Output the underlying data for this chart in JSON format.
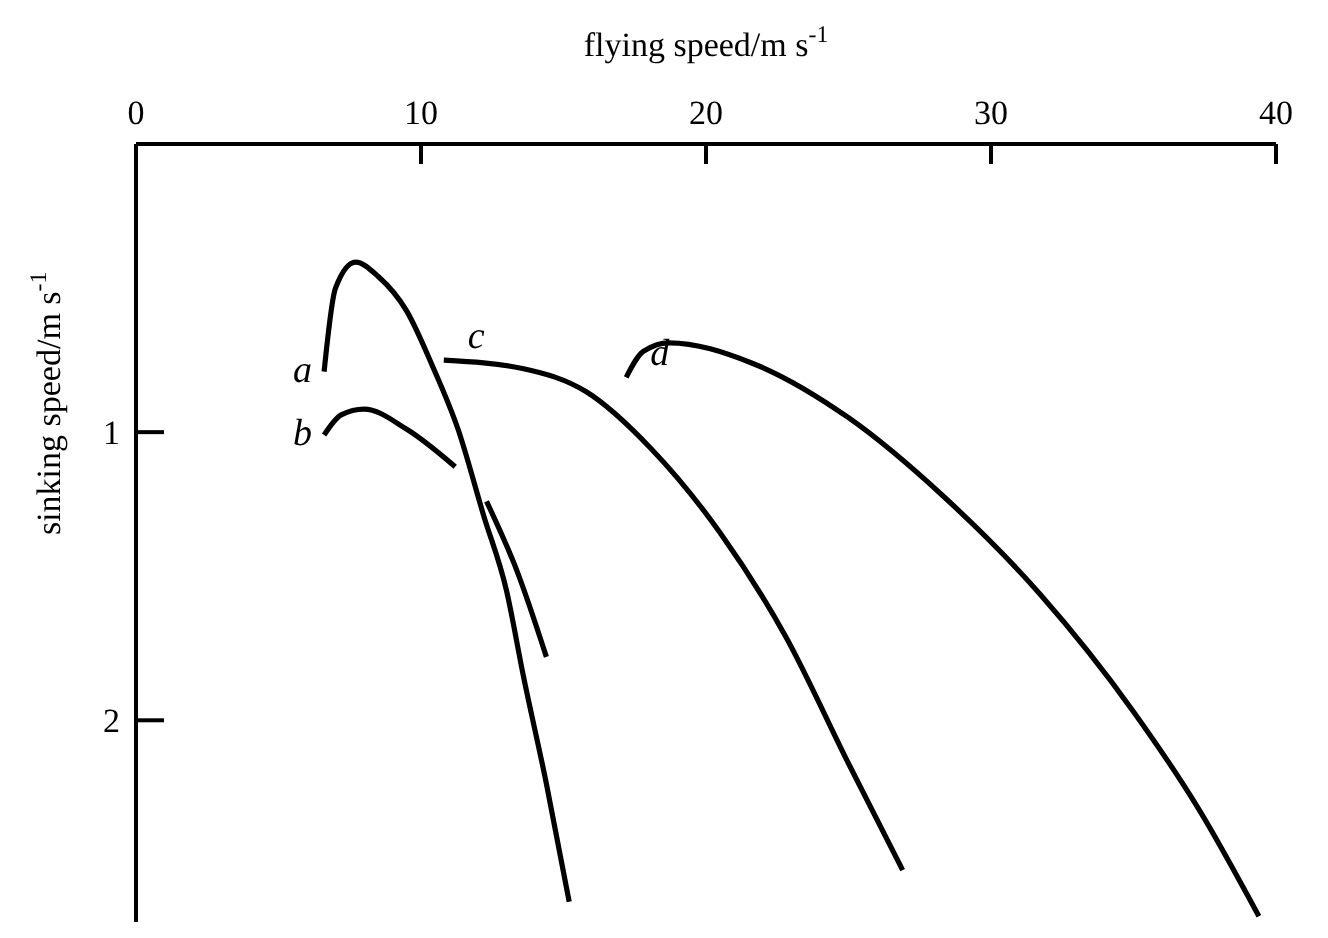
{
  "chart_data": {
    "type": "line",
    "xlabel": "flying speed/m s$^{-1}$",
    "ylabel": "sinking speed/m s$^{-1}$",
    "xlim": [
      0,
      40
    ],
    "xticks": [
      0,
      10,
      20,
      30,
      40
    ],
    "ylim": [
      2.7,
      0
    ],
    "yticks": [
      1,
      2
    ],
    "grid": false,
    "legend": false,
    "marker": "none",
    "line_style": "solid",
    "series": [
      {
        "name": "a",
        "color": "#000000",
        "x": [
          6.6,
          7.0,
          7.7,
          8.5,
          9.5,
          10.4,
          11.3,
          12.2,
          13.0,
          13.6,
          14.4,
          15.2
        ],
        "values": [
          0.79,
          0.5,
          0.41,
          0.46,
          0.58,
          0.77,
          0.99,
          1.29,
          1.55,
          1.85,
          2.22,
          2.63
        ]
      },
      {
        "name": "b",
        "color": "#000000",
        "x": [
          6.6,
          7.2,
          8.0,
          9.5,
          11.2,
          11.8,
          12.3,
          13.4,
          14.4
        ],
        "values": [
          1.01,
          0.94,
          0.92,
          0.99,
          1.12,
          null,
          1.24,
          1.49,
          1.78
        ]
      },
      {
        "name": "c",
        "color": "#000000",
        "x": [
          10.8,
          13.6,
          15.8,
          18.1,
          20.5,
          22.8,
          25.0,
          26.9
        ],
        "values": [
          0.75,
          0.78,
          0.86,
          1.06,
          1.35,
          1.71,
          2.15,
          2.52
        ]
      },
      {
        "name": "d",
        "color": "#000000",
        "x": [
          17.2,
          17.8,
          18.7,
          21.6,
          25.0,
          28.3,
          31.7,
          35.0,
          37.3,
          39.4
        ],
        "values": [
          0.81,
          0.72,
          0.69,
          0.76,
          0.95,
          1.22,
          1.56,
          1.97,
          2.31,
          2.68
        ]
      }
    ]
  }
}
